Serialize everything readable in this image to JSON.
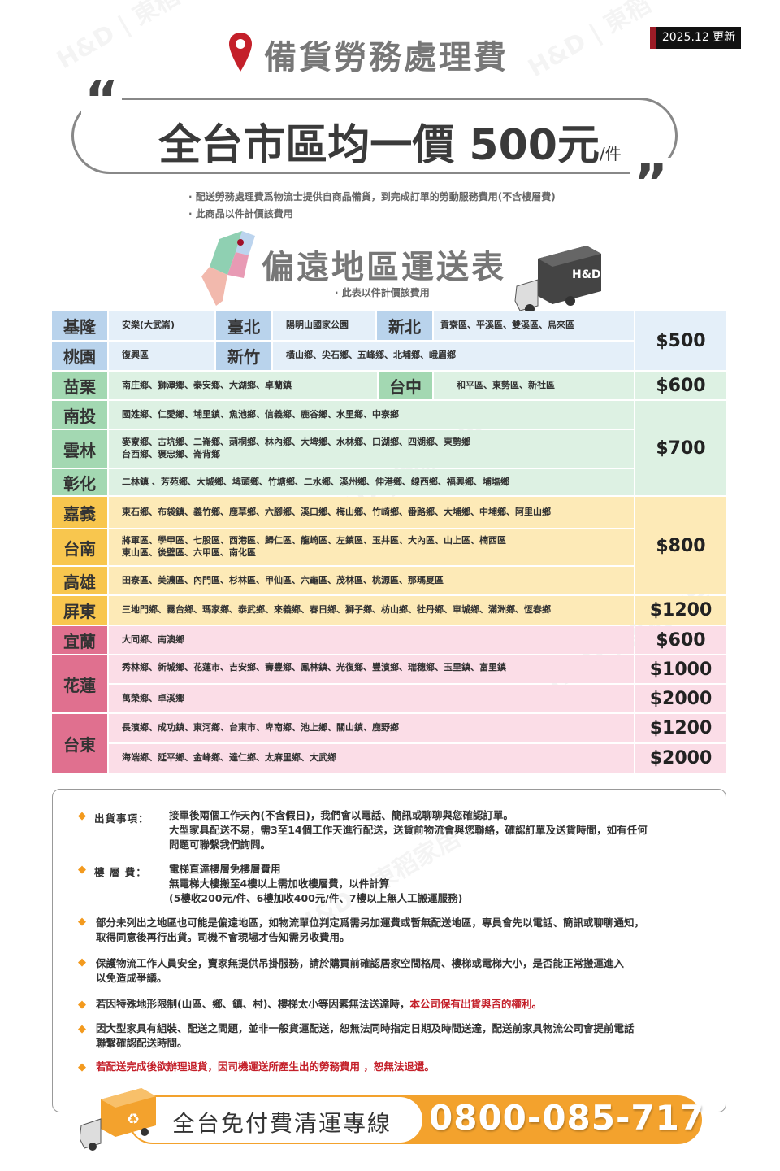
{
  "watermark": "H&D | 東稻家居",
  "colors": {
    "north": "#b9d3ec",
    "central": "#a3d8b2",
    "south": "#f8c64e",
    "east": "#e0708f",
    "accent": "#f3a22d",
    "red": "#c4202a"
  },
  "header": {
    "update_badge": "2025.12 更新",
    "title": "備貨勞務處理費",
    "slogan": "全台市區均一價 500元",
    "slogan_unit": "/件",
    "notes": [
      "· 配送勞務處理費爲物流士提供自商品備貨，到完成訂單的勞動服務費用(不含樓層費)",
      "· 此商品以件計價該費用"
    ]
  },
  "table": {
    "title": "偏遠地區運送表",
    "subtitle": "· 此表以件計價該費用",
    "truck_logo": "H&D",
    "rows": [
      {
        "region": "基隆",
        "areas": "安樂(大武崙)"
      },
      {
        "region": "臺北",
        "areas": "陽明山國家公園"
      },
      {
        "region": "新北",
        "areas": "貢寮區、平溪區、雙溪區、烏來區"
      },
      {
        "region": "桃園",
        "areas": "復興區"
      },
      {
        "region": "新竹",
        "areas": "橫山鄉、尖石鄉、五峰鄉、北埔鄉、峨眉鄉"
      },
      {
        "region": "苗栗",
        "areas": "南庄鄉、獅潭鄉、泰安鄉、大湖鄉、卓蘭鎮"
      },
      {
        "region": "台中",
        "areas": "和平區、東勢區、新社區"
      },
      {
        "region": "南投",
        "areas": "國姓鄉、仁愛鄉、埔里鎮、魚池鄉、信義鄉、鹿谷鄉、水里鄉、中寮鄉"
      },
      {
        "region": "雲林",
        "areas": "麥寮鄉、古坑鄉、二崙鄉、莿桐鄉、林內鄉、大埤鄉、水林鄉、口湖鄉、四湖鄉、東勢鄉",
        "areas2": "台西鄉、褒忠鄉、崙背鄉"
      },
      {
        "region": "彰化",
        "areas": "二林鎮 、芳苑鄉、大城鄉、埤頭鄉、竹塘鄉、二水鄉、溪州鄉、伸港鄉、線西鄉、福興鄉、埔塩鄉"
      },
      {
        "region": "嘉義",
        "areas": "東石鄉、布袋鎮、義竹鄉、鹿草鄉、六腳鄉、溪口鄉、梅山鄉、竹崎鄉、番路鄉、大埔鄉、中埔鄉、阿里山鄉"
      },
      {
        "region": "台南",
        "areas": "將軍區、學甲區、七股區、西港區、歸仁區、龍崎區、左鎮區、玉井區、大內區、山上區、楠西區",
        "areas2": "東山區、後壁區、六甲區、南化區"
      },
      {
        "region": "高雄",
        "areas": "田寮區、美濃區、內門區、杉林區、甲仙區、六龜區、茂林區、桃源區、那瑪夏區"
      },
      {
        "region": "屏東",
        "areas": "三地門鄉、霧台鄉、瑪家鄉、泰武鄉、來義鄉、春日鄉、獅子鄉、枋山鄉、牡丹鄉、車城鄉、滿洲鄉、恆春鄉"
      },
      {
        "region": "宜蘭",
        "areas": "大同鄉、南澳鄉"
      },
      {
        "region": "花蓮",
        "areas": "秀林鄉、新城鄉、花蓮市、吉安鄉、壽豐鄉、鳳林鎮、光復鄉、豐濱鄉、瑞穗鄉、玉里鎮、富里鎮",
        "areas2": "萬榮鄉、卓溪鄉"
      },
      {
        "region": "台東",
        "areas": "長濱鄉、成功鎮、東河鄉、台東市、卑南鄉、池上鄉、關山鎮、鹿野鄉",
        "areas2": "海端鄉、延平鄉、金峰鄉、達仁鄉、太麻里鄉、大武鄉"
      }
    ],
    "prices": [
      "$500",
      "$600",
      "$700",
      "$800",
      "$1200",
      "$600",
      "$1000",
      "$2000",
      "$1200",
      "$2000"
    ]
  },
  "notes": {
    "shipping_label": "出貨事項：",
    "shipping_lines": [
      "接單後兩個工作天內(不含假日)，我們會以電話、簡訊或聊聊與您確認訂單。",
      "大型家具配送不易，需3至14個工作天進行配送，送貨前物流會與您聯絡，確認訂單及送貨時間，如有任何",
      "問題可聯繫我們詢問。"
    ],
    "floor_label": "樓 層 費：",
    "floor_lines": [
      "電梯直達樓層免樓層費用",
      "無電梯大樓搬至4樓以上需加收樓層費，以件計算",
      "(5樓收200元/件、6樓加收400元/件、7樓以上無人工搬運服務)"
    ],
    "item1": [
      "部分未列出之地區也可能是偏遠地區，如物流單位判定爲需另加運費或暫無配送地區，專員會先以電話、簡訊或聊聊通知，",
      "取得同意後再行出貨。司機不會現場才告知需另收費用。"
    ],
    "item2": [
      "保護物流工作人員安全，賣家無提供吊掛服務，請於購買前確認居家空間格局、樓梯或電梯大小，是否能正常搬運進入",
      "以免造成爭議。"
    ],
    "item3_a": "若因特殊地形限制(山區、鄉、鎮、村)、樓梯太小等因素無法送達時，",
    "item3_b": "本公司保有出貨與否的權利。",
    "item4": [
      "因大型家具有組裝、配送之問題，並非一般貨運配送，恕無法同時指定日期及時間送達，配送前家具物流公司會提前電話",
      "聯繫確認配送時間。"
    ],
    "item5": "若配送完成後欲辦理退貨，因司機運送所產生出的勞務費用 ，恕無法退還。"
  },
  "footer": {
    "label": "全台免付費清運專線",
    "phone": "0800-085-717"
  }
}
